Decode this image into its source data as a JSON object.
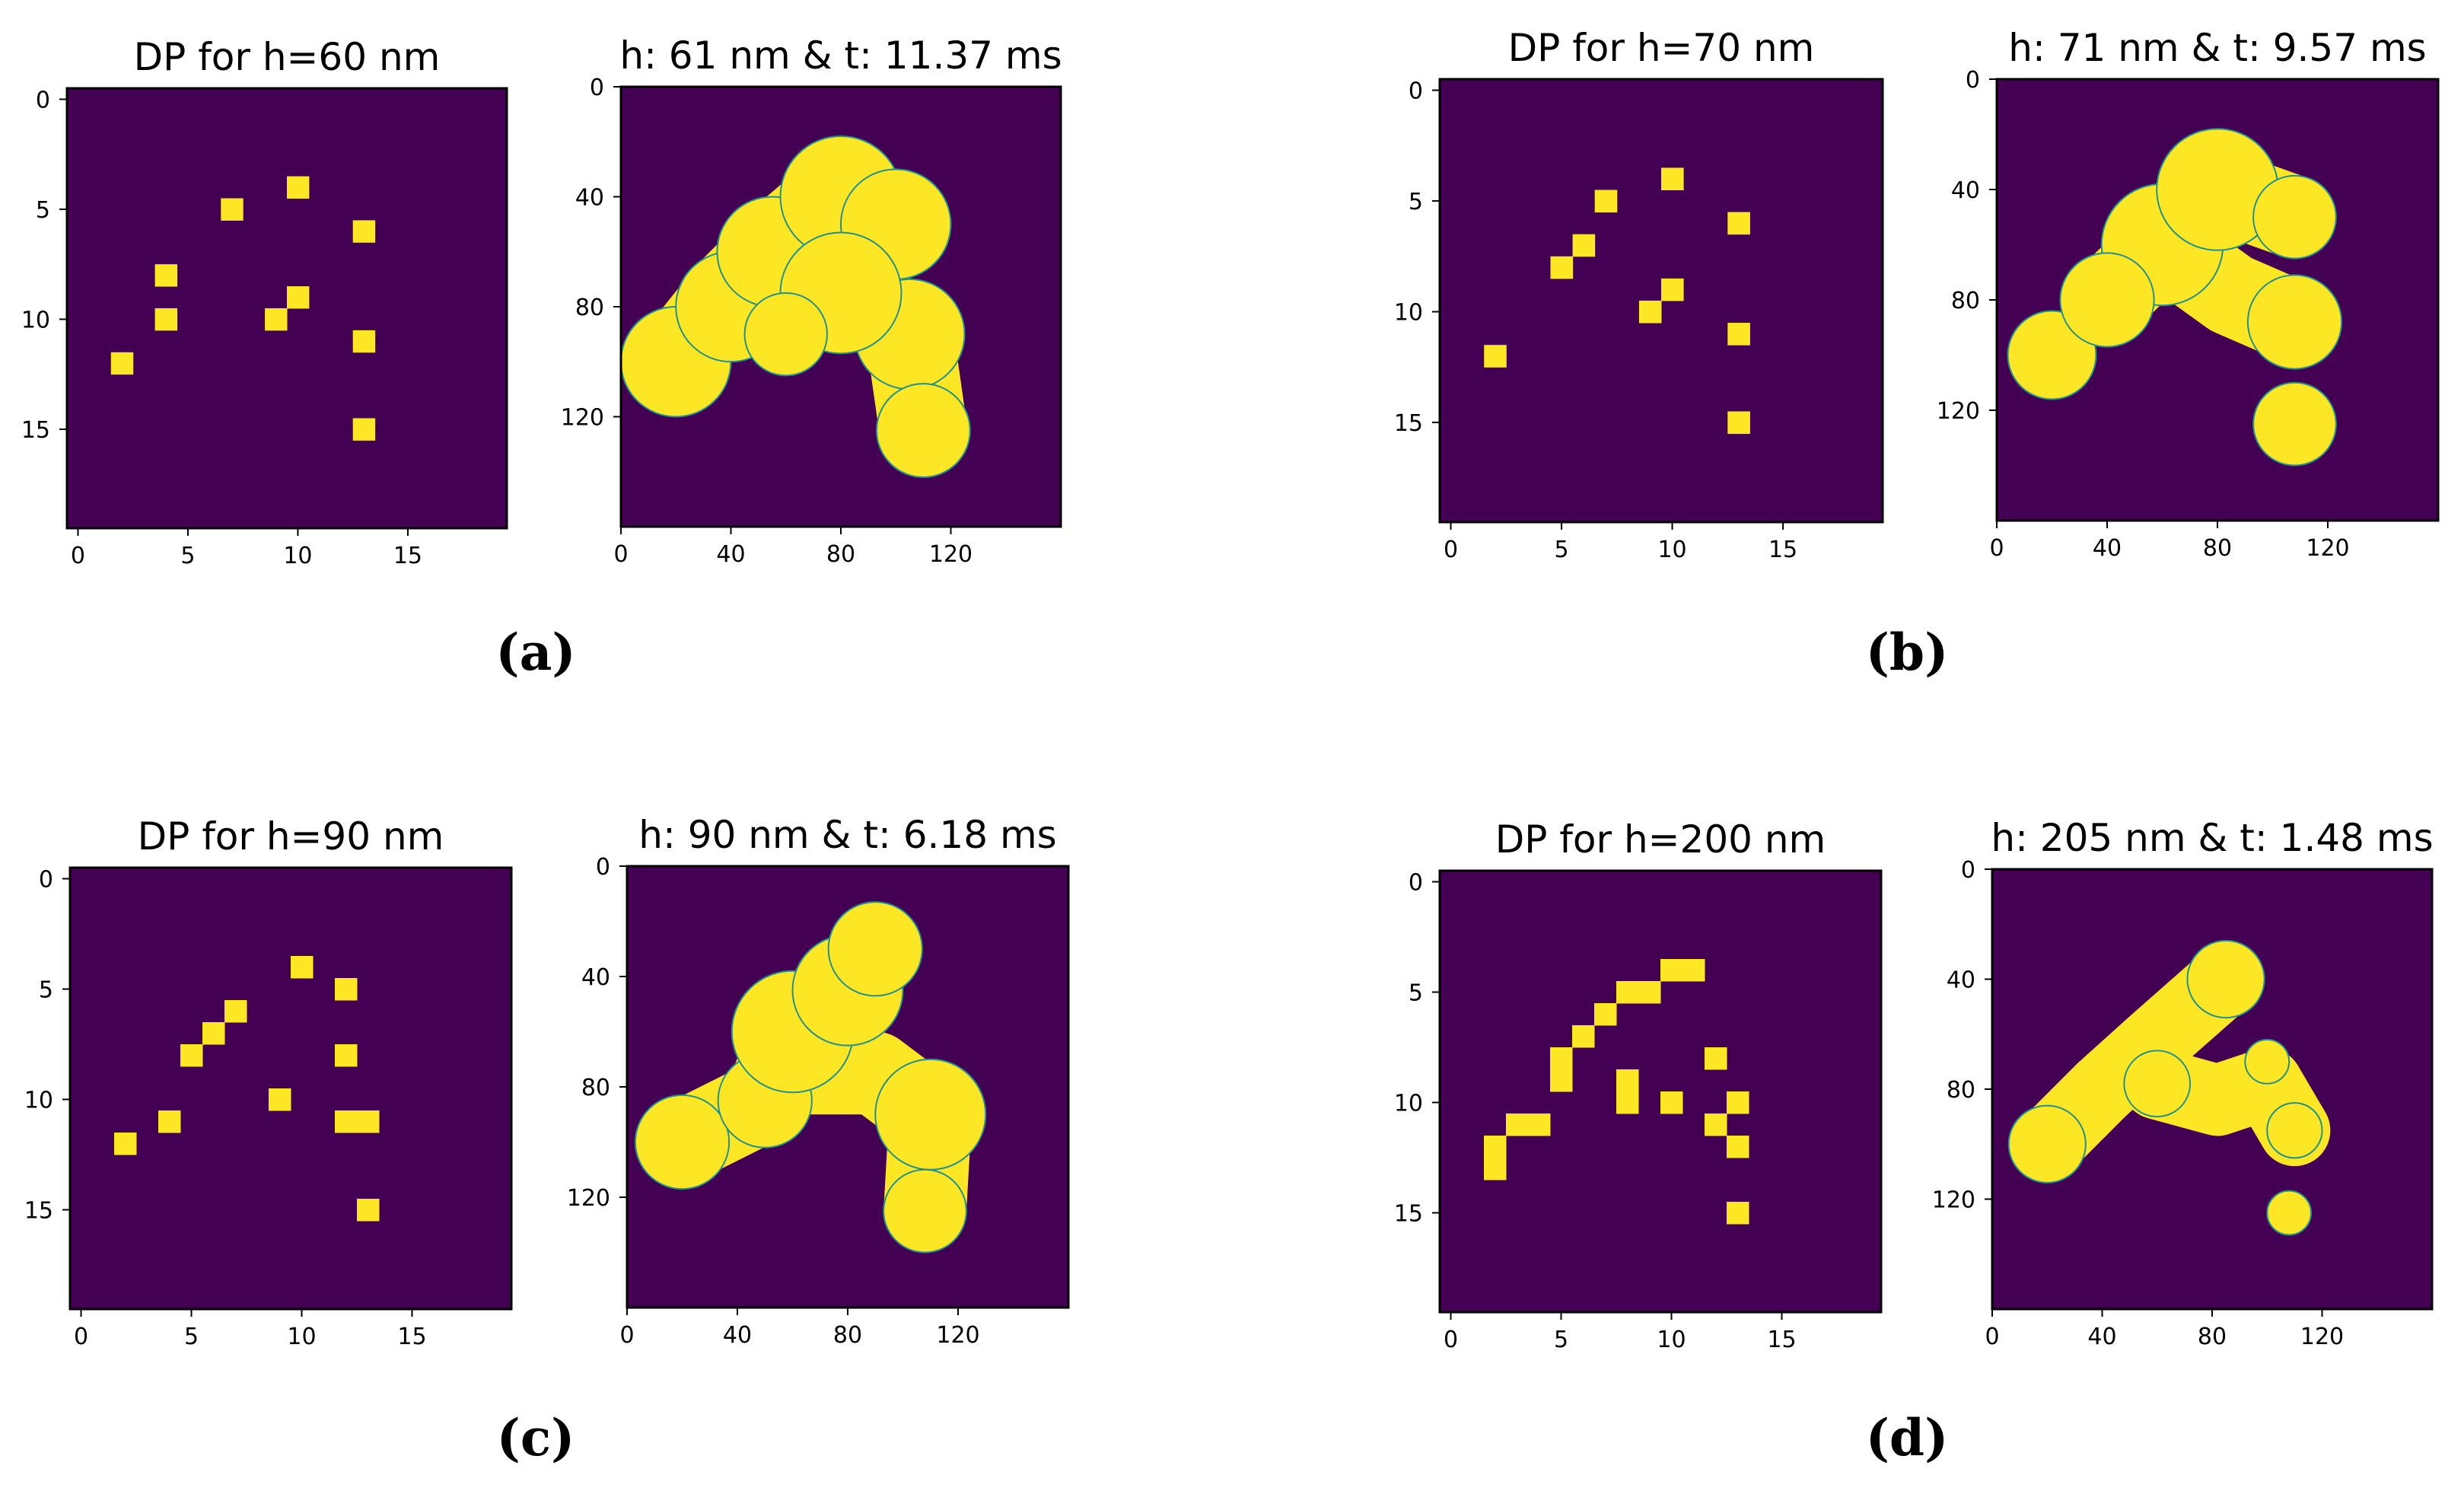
{
  "figure": {
    "panels": [
      {
        "label": "(a)",
        "plots": [
          {
            "title": "DP for h=60 nm",
            "kind": "grid",
            "x_ticks": [
              "0",
              "5",
              "10",
              "15"
            ],
            "y_ticks": [
              "0",
              "5",
              "10",
              "15"
            ],
            "extent": 20,
            "cells": [
              [
                10,
                4
              ],
              [
                7,
                5
              ],
              [
                13,
                6
              ],
              [
                4,
                8
              ],
              [
                10,
                9
              ],
              [
                4,
                10
              ],
              [
                9,
                10
              ],
              [
                13,
                11
              ],
              [
                2,
                12
              ],
              [
                13,
                15
              ]
            ]
          },
          {
            "title": "h: 61 nm & t: 11.37 ms",
            "kind": "blob",
            "x_ticks": [
              "0",
              "40",
              "80",
              "120"
            ],
            "y_ticks": [
              "0",
              "40",
              "80",
              "120"
            ],
            "extent": 160
          }
        ]
      },
      {
        "label": "(b)",
        "plots": [
          {
            "title": "DP for h=70 nm",
            "kind": "grid",
            "x_ticks": [
              "0",
              "5",
              "10",
              "15"
            ],
            "y_ticks": [
              "0",
              "5",
              "10",
              "15"
            ],
            "extent": 20,
            "cells": [
              [
                10,
                4
              ],
              [
                7,
                5
              ],
              [
                13,
                6
              ],
              [
                6,
                7
              ],
              [
                5,
                8
              ],
              [
                10,
                9
              ],
              [
                9,
                10
              ],
              [
                13,
                11
              ],
              [
                2,
                12
              ],
              [
                13,
                15
              ]
            ]
          },
          {
            "title": "h: 71 nm & t: 9.57 ms",
            "kind": "blob",
            "x_ticks": [
              "0",
              "40",
              "80",
              "120"
            ],
            "y_ticks": [
              "0",
              "40",
              "80",
              "120"
            ],
            "extent": 160
          }
        ]
      },
      {
        "label": "(c)",
        "plots": [
          {
            "title": "DP for h=90 nm",
            "kind": "grid",
            "x_ticks": [
              "0",
              "5",
              "10",
              "15"
            ],
            "y_ticks": [
              "0",
              "5",
              "10",
              "15"
            ],
            "extent": 20,
            "cells": [
              [
                10,
                4
              ],
              [
                12,
                5
              ],
              [
                7,
                6
              ],
              [
                6,
                7
              ],
              [
                5,
                8
              ],
              [
                12,
                8
              ],
              [
                9,
                10
              ],
              [
                4,
                11
              ],
              [
                12,
                11
              ],
              [
                13,
                11
              ],
              [
                2,
                12
              ],
              [
                13,
                15
              ]
            ]
          },
          {
            "title": "h: 90 nm & t: 6.18 ms",
            "kind": "blob",
            "x_ticks": [
              "0",
              "40",
              "80",
              "120"
            ],
            "y_ticks": [
              "0",
              "40",
              "80",
              "120"
            ],
            "extent": 160
          }
        ]
      },
      {
        "label": "(d)",
        "plots": [
          {
            "title": "DP for h=200 nm",
            "kind": "grid",
            "x_ticks": [
              "0",
              "5",
              "10",
              "15"
            ],
            "y_ticks": [
              "0",
              "5",
              "10",
              "15"
            ],
            "extent": 20,
            "cells": [
              [
                10,
                4
              ],
              [
                11,
                4
              ],
              [
                8,
                5
              ],
              [
                9,
                5
              ],
              [
                7,
                6
              ],
              [
                6,
                7
              ],
              [
                5,
                8
              ],
              [
                12,
                8
              ],
              [
                5,
                9
              ],
              [
                8,
                9
              ],
              [
                8,
                10
              ],
              [
                10,
                10
              ],
              [
                13,
                10
              ],
              [
                3,
                11
              ],
              [
                4,
                11
              ],
              [
                12,
                11
              ],
              [
                2,
                12
              ],
              [
                13,
                12
              ],
              [
                2,
                13
              ],
              [
                13,
                15
              ]
            ]
          },
          {
            "title": "h: 205 nm & t: 1.48 ms",
            "kind": "blob",
            "x_ticks": [
              "0",
              "40",
              "80",
              "120"
            ],
            "y_ticks": [
              "0",
              "40",
              "80",
              "120"
            ],
            "extent": 160
          }
        ]
      }
    ]
  },
  "colors": {
    "background": "#440154",
    "feature": "#fde725",
    "edge": "#21918c"
  }
}
